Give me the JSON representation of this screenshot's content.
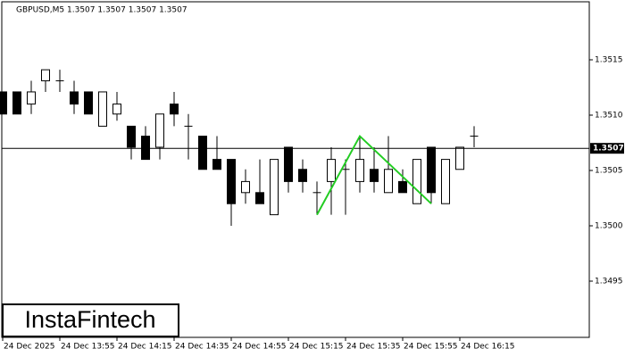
{
  "chart_data": {
    "type": "candlestick",
    "title": "GBPUSD,M5  1.3507 1.3507 1.3507 1.3507",
    "logo": "InstaFintech",
    "ylim": [
      1.349,
      1.352
    ],
    "yticks": [
      1.3495,
      {
        "value": 1.35,
        "label": "1.3500"
      },
      1.3505,
      {
        "value": 1.351,
        "label": "1.3510"
      },
      1.3515
    ],
    "xticks": [
      {
        "value": 0,
        "label": "24 Dec 2025"
      },
      {
        "value": 4,
        "label": "24 Dec 13:55"
      },
      {
        "value": 8,
        "label": "24 Dec 14:15"
      },
      {
        "value": 12,
        "label": "24 Dec 14:35"
      },
      {
        "value": 16,
        "label": "24 Dec 14:55"
      },
      {
        "value": 20,
        "label": "24 Dec 15:15"
      },
      {
        "value": 24,
        "label": "24 Dec 15:35"
      },
      {
        "value": 28,
        "label": "24 Dec 15:55"
      },
      {
        "value": 32,
        "label": "24 Dec 16:15"
      }
    ],
    "open": [
      1.35121,
      1.35121,
      1.3511,
      1.35131,
      1.35131,
      1.35121,
      1.35121,
      1.3509,
      1.35101,
      1.3509,
      1.35081,
      1.35071,
      1.3511,
      1.3509,
      1.35081,
      1.3506,
      1.3506,
      1.3503,
      1.3503,
      1.3501,
      1.35071,
      1.35051,
      1.3503,
      1.3504,
      1.35051,
      1.3504,
      1.35051,
      1.3503,
      1.3504,
      1.3502,
      1.35071,
      1.3502,
      1.35051,
      1.35081
    ],
    "high": [
      1.35121,
      1.35121,
      1.35131,
      1.35141,
      1.35141,
      1.35131,
      1.35121,
      1.35121,
      1.35121,
      1.3509,
      1.3509,
      1.35101,
      1.35121,
      1.35101,
      1.35081,
      1.35081,
      1.3506,
      1.35051,
      1.3506,
      1.3506,
      1.35071,
      1.3506,
      1.3504,
      1.35071,
      1.3506,
      1.35081,
      1.35071,
      1.35081,
      1.35051,
      1.3506,
      1.35071,
      1.3506,
      1.35071,
      1.3509
    ],
    "low": [
      1.35101,
      1.35101,
      1.35101,
      1.35121,
      1.35121,
      1.35101,
      1.35101,
      1.3509,
      1.35095,
      1.3506,
      1.3506,
      1.3506,
      1.3509,
      1.3506,
      1.35051,
      1.35051,
      1.35,
      1.3502,
      1.3502,
      1.3501,
      1.3503,
      1.3503,
      1.3501,
      1.3501,
      1.3501,
      1.3503,
      1.3503,
      1.3503,
      1.3503,
      1.3502,
      1.3502,
      1.3502,
      1.35051,
      1.35071
    ],
    "close": [
      1.35101,
      1.35101,
      1.35121,
      1.35141,
      1.35131,
      1.3511,
      1.35101,
      1.35121,
      1.3511,
      1.35071,
      1.3506,
      1.35101,
      1.35101,
      1.3509,
      1.35051,
      1.35051,
      1.3502,
      1.3504,
      1.3502,
      1.3506,
      1.3504,
      1.3504,
      1.3503,
      1.3506,
      1.35051,
      1.3506,
      1.3504,
      1.35051,
      1.3503,
      1.3506,
      1.3503,
      1.3506,
      1.35071,
      1.35081
    ],
    "last_price": {
      "value": 1.3507,
      "label": "1.3507"
    },
    "pattern": {
      "x": [
        22,
        25,
        30
      ],
      "y": [
        1.3501,
        1.35081,
        1.3502
      ],
      "color": "#22cc22"
    }
  }
}
